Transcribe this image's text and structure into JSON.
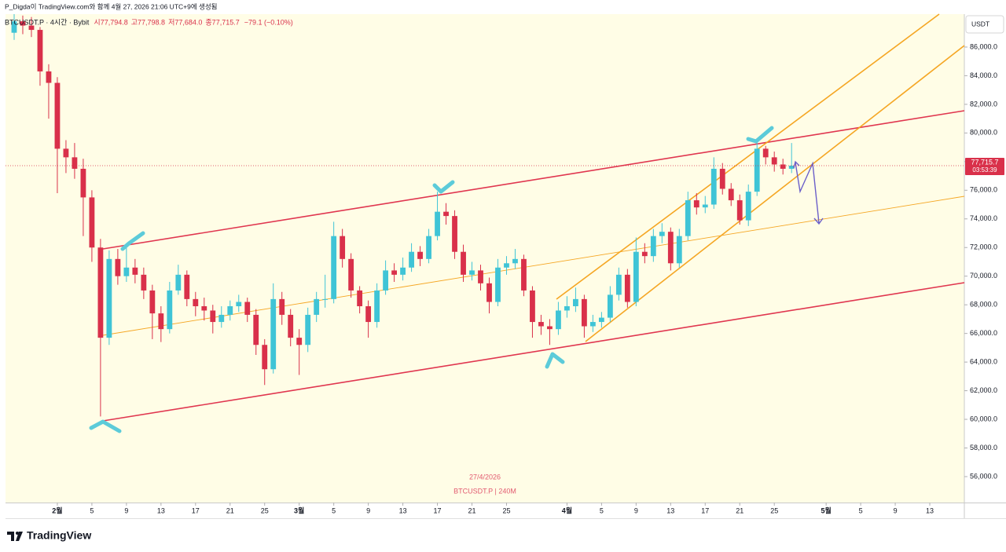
{
  "header": {
    "credit": "P_Digda이 TradingView.com와 함께 4월 27, 2026 21:06 UTC+9에 생성됨"
  },
  "footer": {
    "brand": "TradingView"
  },
  "chart_data": {
    "type": "candlestick",
    "legend": {
      "symbol": "BTCUSDT.P · 4시간 · Bybit",
      "ohlc": [
        "시77,794.8",
        "고77,798.8",
        "저77,684.0",
        "종77,715.7"
      ],
      "change": "−79.1 (−0.10%)"
    },
    "currency": "USDT",
    "watermark": [
      "27/4/2026",
      "BTCUSDT.P | 240M"
    ],
    "up_color": "#3fc4d6",
    "down_color": "#d9304a",
    "last_price": {
      "value": 77715.7,
      "label": "77,715.7"
    },
    "countdown": "03:53:39",
    "xlim": [
      "2026-01-26",
      "2026-05-17"
    ],
    "ylim": [
      54190,
      88300
    ],
    "yticks": [
      {
        "value": 56000,
        "label": "56,000.0"
      },
      {
        "value": 58000,
        "label": "58,000.0"
      },
      {
        "value": 60000,
        "label": "60,000.0"
      },
      {
        "value": 62000,
        "label": "62,000.0"
      },
      {
        "value": 64000,
        "label": "64,000.0"
      },
      {
        "value": 66000,
        "label": "66,000.0"
      },
      {
        "value": 68000,
        "label": "68,000.0"
      },
      {
        "value": 70000,
        "label": "70,000.0"
      },
      {
        "value": 72000,
        "label": "72,000.0"
      },
      {
        "value": 74000,
        "label": "74,000.0"
      },
      {
        "value": 76000,
        "label": "76,000.0"
      },
      {
        "value": 78000,
        "label": "78,000.0"
      },
      {
        "value": 80000,
        "label": "80,000.0"
      },
      {
        "value": 82000,
        "label": "82,000.0"
      },
      {
        "value": 84000,
        "label": "84,000.0"
      },
      {
        "value": 86000,
        "label": "86,000.0"
      }
    ],
    "xticks": [
      {
        "value": "2026-02-01",
        "label": "2월"
      },
      {
        "value": "2026-02-05",
        "label": "5"
      },
      {
        "value": "2026-02-09",
        "label": "9"
      },
      {
        "value": "2026-02-13",
        "label": "13"
      },
      {
        "value": "2026-02-17",
        "label": "17"
      },
      {
        "value": "2026-02-21",
        "label": "21"
      },
      {
        "value": "2026-02-25",
        "label": "25"
      },
      {
        "value": "2026-03-01",
        "label": "3월"
      },
      {
        "value": "2026-03-05",
        "label": "5"
      },
      {
        "value": "2026-03-09",
        "label": "9"
      },
      {
        "value": "2026-03-13",
        "label": "13"
      },
      {
        "value": "2026-03-17",
        "label": "17"
      },
      {
        "value": "2026-03-21",
        "label": "21"
      },
      {
        "value": "2026-03-25",
        "label": "25"
      },
      {
        "value": "2026-04-01",
        "label": "4월"
      },
      {
        "value": "2026-04-05",
        "label": "5"
      },
      {
        "value": "2026-04-09",
        "label": "9"
      },
      {
        "value": "2026-04-13",
        "label": "13"
      },
      {
        "value": "2026-04-17",
        "label": "17"
      },
      {
        "value": "2026-04-21",
        "label": "21"
      },
      {
        "value": "2026-04-25",
        "label": "25"
      },
      {
        "value": "2026-05-01",
        "label": "5월"
      },
      {
        "value": "2026-05-05",
        "label": "5"
      },
      {
        "value": "2026-05-09",
        "label": "9"
      },
      {
        "value": "2026-05-13",
        "label": "13"
      }
    ],
    "x": [
      "2026-01-27",
      "2026-01-28",
      "2026-01-29",
      "2026-01-30",
      "2026-01-31",
      "2026-02-01",
      "2026-02-02",
      "2026-02-03",
      "2026-02-04",
      "2026-02-05",
      "2026-02-06",
      "2026-02-07",
      "2026-02-08",
      "2026-02-09",
      "2026-02-10",
      "2026-02-11",
      "2026-02-12",
      "2026-02-13",
      "2026-02-14",
      "2026-02-15",
      "2026-02-16",
      "2026-02-17",
      "2026-02-18",
      "2026-02-19",
      "2026-02-20",
      "2026-02-21",
      "2026-02-22",
      "2026-02-23",
      "2026-02-24",
      "2026-02-25",
      "2026-02-26",
      "2026-02-27",
      "2026-02-28",
      "2026-03-01",
      "2026-03-02",
      "2026-03-03",
      "2026-03-04",
      "2026-03-05",
      "2026-03-06",
      "2026-03-07",
      "2026-03-08",
      "2026-03-09",
      "2026-03-10",
      "2026-03-11",
      "2026-03-12",
      "2026-03-13",
      "2026-03-14",
      "2026-03-15",
      "2026-03-16",
      "2026-03-17",
      "2026-03-18",
      "2026-03-19",
      "2026-03-20",
      "2026-03-21",
      "2026-03-22",
      "2026-03-23",
      "2026-03-24",
      "2026-03-25",
      "2026-03-26",
      "2026-03-27",
      "2026-03-28",
      "2026-03-29",
      "2026-03-30",
      "2026-03-31",
      "2026-04-01",
      "2026-04-02",
      "2026-04-03",
      "2026-04-04",
      "2026-04-05",
      "2026-04-06",
      "2026-04-07",
      "2026-04-08",
      "2026-04-09",
      "2026-04-10",
      "2026-04-11",
      "2026-04-12",
      "2026-04-13",
      "2026-04-14",
      "2026-04-15",
      "2026-04-16",
      "2026-04-17",
      "2026-04-18",
      "2026-04-19",
      "2026-04-20",
      "2026-04-21",
      "2026-04-22",
      "2026-04-23",
      "2026-04-24",
      "2026-04-25",
      "2026-04-26",
      "2026-04-27"
    ],
    "open": [
      87000,
      87800,
      87500,
      87200,
      84300,
      83500,
      78900,
      78300,
      77500,
      75500,
      72000,
      65700,
      71200,
      70000,
      70600,
      70100,
      69000,
      67400,
      66300,
      69000,
      70100,
      68400,
      67900,
      67600,
      66800,
      67300,
      67900,
      68200,
      67300,
      65200,
      63500,
      68400,
      67300,
      65700,
      65200,
      67300,
      68400,
      68400,
      72800,
      71200,
      69000,
      67900,
      66800,
      69000,
      70400,
      70100,
      70600,
      71700,
      71200,
      72800,
      74500,
      74200,
      71700,
      70100,
      70400,
      69500,
      68200,
      70600,
      70900,
      71200,
      69000,
      66800,
      66500,
      66300,
      67600,
      67900,
      68400,
      66500,
      66800,
      67100,
      68700,
      70100,
      68200,
      71700,
      71400,
      72800,
      73100,
      70900,
      72800,
      75300,
      74800,
      75000,
      77500,
      76100,
      75300,
      73900,
      75900,
      78900,
      78300,
      77800,
      77500
    ],
    "high": [
      88300,
      88200,
      88100,
      87400,
      84800,
      83900,
      79500,
      79300,
      78200,
      76000,
      72600,
      71800,
      71900,
      72300,
      71200,
      70600,
      69400,
      67900,
      69600,
      70800,
      70400,
      68900,
      68500,
      68000,
      67900,
      68300,
      68700,
      68500,
      67700,
      65600,
      69500,
      68900,
      67700,
      66300,
      67800,
      68900,
      70100,
      73800,
      73300,
      71600,
      69300,
      68300,
      69500,
      71100,
      70900,
      71300,
      72300,
      72100,
      73300,
      75900,
      75100,
      74600,
      72200,
      71000,
      70800,
      69900,
      71200,
      71400,
      71900,
      71500,
      69300,
      67300,
      67000,
      68200,
      68600,
      69200,
      68700,
      67300,
      67500,
      69300,
      70600,
      70500,
      72700,
      72300,
      73300,
      73700,
      73400,
      73300,
      75900,
      75800,
      75600,
      78300,
      77900,
      76500,
      75700,
      76400,
      79400,
      79100,
      78700,
      78200,
      79300
    ],
    "low": [
      86500,
      86900,
      86700,
      83300,
      81000,
      75800,
      77200,
      76800,
      72800,
      71000,
      60200,
      65200,
      69400,
      69600,
      69500,
      68400,
      65600,
      65400,
      66000,
      68700,
      67900,
      67200,
      66900,
      66000,
      66400,
      66900,
      67500,
      66800,
      64500,
      62400,
      63200,
      66600,
      65100,
      63100,
      64700,
      66800,
      67800,
      68100,
      70600,
      68500,
      67400,
      65700,
      66400,
      68700,
      69600,
      69700,
      70300,
      70700,
      70900,
      72500,
      73600,
      71200,
      69600,
      69700,
      69000,
      67400,
      67900,
      70100,
      70500,
      68600,
      65700,
      65900,
      65200,
      65900,
      67100,
      67500,
      65700,
      66100,
      66400,
      66800,
      68300,
      67800,
      67900,
      70900,
      71000,
      72300,
      70400,
      70600,
      72500,
      74300,
      74400,
      74700,
      75700,
      74900,
      73600,
      73500,
      75600,
      77800,
      77300,
      77100,
      77200
    ],
    "close": [
      87800,
      87500,
      87200,
      84300,
      83500,
      78900,
      78300,
      77500,
      75500,
      72000,
      65700,
      71200,
      70000,
      70600,
      70100,
      69000,
      67400,
      66300,
      69000,
      70100,
      68400,
      67900,
      67600,
      66800,
      67300,
      67900,
      68200,
      67300,
      65200,
      63500,
      68400,
      67300,
      65700,
      65200,
      67300,
      68400,
      68400,
      72800,
      71200,
      69000,
      67900,
      66800,
      69000,
      70400,
      70100,
      70600,
      71700,
      71200,
      72800,
      74500,
      74200,
      71700,
      70100,
      70400,
      69500,
      68200,
      70600,
      70900,
      71200,
      69000,
      66800,
      66500,
      66300,
      67600,
      67900,
      68400,
      66500,
      66800,
      67100,
      68700,
      70100,
      68200,
      71700,
      71400,
      72800,
      73100,
      70900,
      72800,
      75300,
      74800,
      75000,
      77500,
      76100,
      75300,
      73900,
      75900,
      78900,
      78300,
      77800,
      77500,
      77715.7
    ]
  }
}
